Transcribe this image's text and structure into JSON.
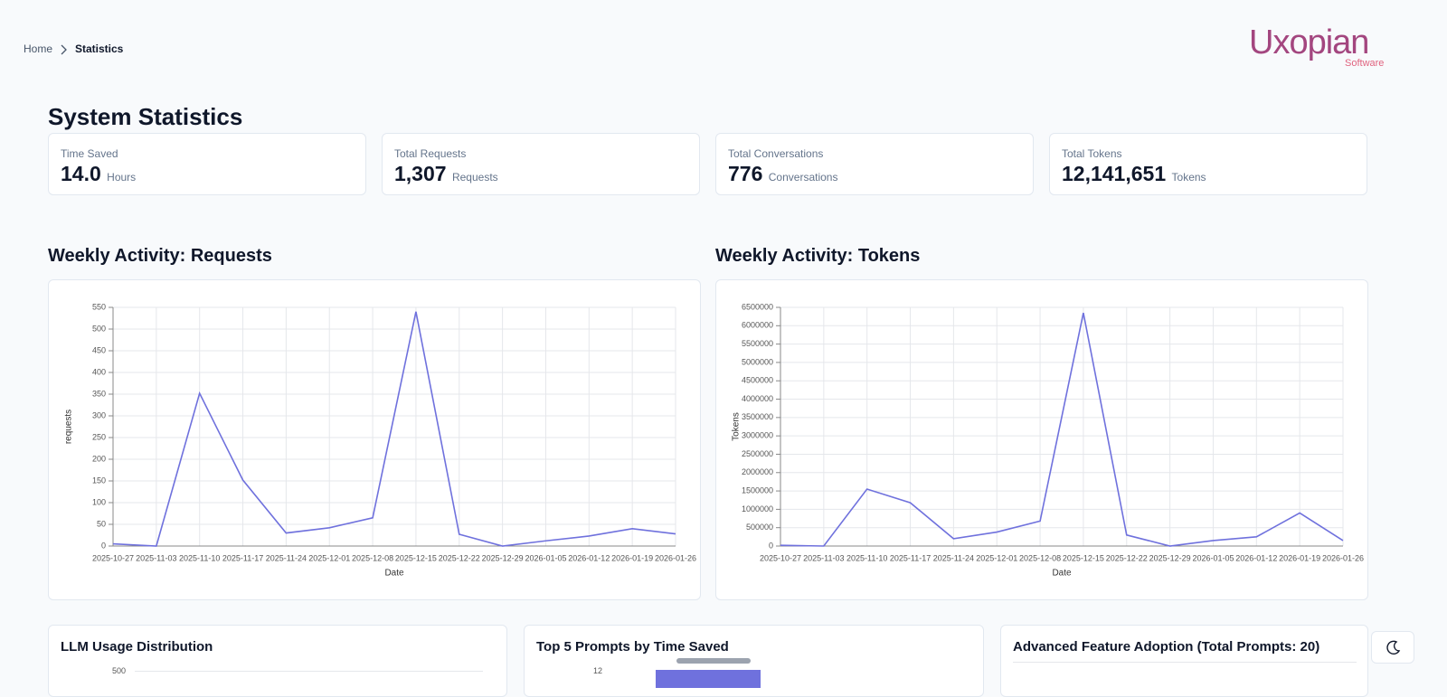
{
  "breadcrumb": {
    "home": "Home",
    "current": "Statistics"
  },
  "logo": {
    "name": "Uxopian",
    "sub": "Software"
  },
  "title": "System Statistics",
  "stats": [
    {
      "label": "Time Saved",
      "value": "14.0",
      "unit": "Hours"
    },
    {
      "label": "Total Requests",
      "value": "1,307",
      "unit": "Requests"
    },
    {
      "label": "Total Conversations",
      "value": "776",
      "unit": "Conversations"
    },
    {
      "label": "Total Tokens",
      "value": "12,141,651",
      "unit": "Tokens"
    }
  ],
  "chart_data": [
    {
      "type": "line",
      "title": "Weekly Activity: Requests",
      "x_label": "Date",
      "y_label": "requests",
      "categories": [
        "2025-10-27",
        "2025-11-03",
        "2025-11-10",
        "2025-11-17",
        "2025-11-24",
        "2025-12-01",
        "2025-12-08",
        "2025-12-15",
        "2025-12-22",
        "2025-12-29",
        "2026-01-05",
        "2026-01-12",
        "2026-01-19",
        "2026-01-26"
      ],
      "values": [
        5,
        0,
        352,
        152,
        30,
        42,
        65,
        540,
        27,
        0,
        12,
        23,
        40,
        28
      ],
      "color": "#6f71dd",
      "ylim": [
        0,
        550
      ],
      "yticks": [
        0,
        50,
        100,
        150,
        200,
        250,
        300,
        350,
        400,
        450,
        500,
        550
      ],
      "grid": true
    },
    {
      "type": "line",
      "title": "Weekly Activity: Tokens",
      "x_label": "Date",
      "y_label": "Tokens",
      "categories": [
        "2025-10-27",
        "2025-11-03",
        "2025-11-10",
        "2025-11-17",
        "2025-11-24",
        "2025-12-01",
        "2025-12-08",
        "2025-12-15",
        "2025-12-22",
        "2025-12-29",
        "2026-01-05",
        "2026-01-12",
        "2026-01-19",
        "2026-01-26"
      ],
      "values": [
        20000,
        0,
        1550000,
        1180000,
        200000,
        380000,
        680000,
        6350000,
        300000,
        0,
        150000,
        250000,
        900000,
        150000
      ],
      "color": "#6f71dd",
      "ylim": [
        0,
        6500000
      ],
      "yticks": [
        0,
        500000,
        1000000,
        1500000,
        2000000,
        2500000,
        3000000,
        3500000,
        4000000,
        4500000,
        5000000,
        5500000,
        6000000,
        6500000
      ],
      "grid": true
    }
  ],
  "bottom_cards": [
    {
      "title": "LLM Usage Distribution",
      "tick": 500
    },
    {
      "title": "Top 5 Prompts by Time Saved",
      "tick": 12
    },
    {
      "title": "Advanced Feature Adoption (Total Prompts: 20)"
    }
  ]
}
